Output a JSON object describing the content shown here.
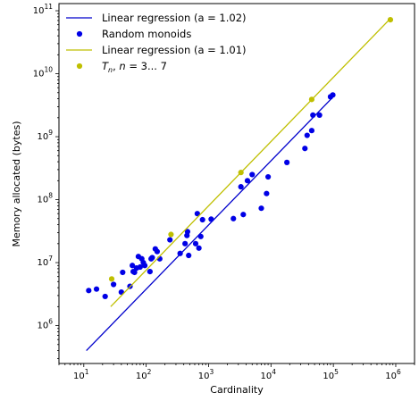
{
  "chart_data": {
    "type": "scatter",
    "title": "",
    "xlabel": "Cardinality",
    "ylabel": "Memory allocated (bytes)",
    "xscale": "log",
    "yscale": "log",
    "xlim": [
      4,
      2000000
    ],
    "ylim": [
      250000,
      130000000000
    ],
    "x_ticks": [
      {
        "value": 10,
        "base": "10",
        "exp": "1"
      },
      {
        "value": 100,
        "base": "10",
        "exp": "2"
      },
      {
        "value": 1000,
        "base": "10",
        "exp": "3"
      },
      {
        "value": 10000,
        "base": "10",
        "exp": "4"
      },
      {
        "value": 100000,
        "base": "10",
        "exp": "5"
      },
      {
        "value": 1000000,
        "base": "10",
        "exp": "6"
      }
    ],
    "y_ticks": [
      {
        "value": 1000000,
        "base": "10",
        "exp": "6"
      },
      {
        "value": 10000000,
        "base": "10",
        "exp": "7"
      },
      {
        "value": 100000000,
        "base": "10",
        "exp": "8"
      },
      {
        "value": 1000000000,
        "base": "10",
        "exp": "9"
      },
      {
        "value": 10000000000,
        "base": "10",
        "exp": "10"
      },
      {
        "value": 100000000000,
        "base": "10",
        "exp": "11"
      }
    ],
    "grid": false,
    "legend_position": "upper-left",
    "series": [
      {
        "name": "Linear regression (a = 1.02)",
        "kind": "line",
        "color": "#0000cc",
        "x": [
          11,
          95000
        ],
        "y": [
          400000,
          4100000000
        ]
      },
      {
        "name": "Random monoids",
        "kind": "scatter",
        "color": "#0000e6",
        "points": [
          [
            12,
            3600000
          ],
          [
            16,
            3800000
          ],
          [
            22,
            2900000
          ],
          [
            30,
            4500000
          ],
          [
            40,
            3400000
          ],
          [
            42,
            7000000
          ],
          [
            55,
            4200000
          ],
          [
            60,
            9000000
          ],
          [
            62,
            7200000
          ],
          [
            65,
            7000000
          ],
          [
            70,
            8200000
          ],
          [
            75,
            12500000
          ],
          [
            80,
            8500000
          ],
          [
            85,
            11500000
          ],
          [
            90,
            10000000
          ],
          [
            95,
            9000000
          ],
          [
            115,
            7200000
          ],
          [
            120,
            11500000
          ],
          [
            125,
            12000000
          ],
          [
            140,
            16500000
          ],
          [
            150,
            15000000
          ],
          [
            165,
            11500000
          ],
          [
            240,
            23000000
          ],
          [
            350,
            14000000
          ],
          [
            420,
            20000000
          ],
          [
            450,
            27000000
          ],
          [
            460,
            31000000
          ],
          [
            480,
            13000000
          ],
          [
            620,
            20000000
          ],
          [
            660,
            60000000
          ],
          [
            700,
            17000000
          ],
          [
            750,
            26000000
          ],
          [
            800,
            48000000
          ],
          [
            1100,
            49000000
          ],
          [
            2500,
            50000000
          ],
          [
            3300,
            160000000
          ],
          [
            3600,
            58000000
          ],
          [
            4200,
            200000000
          ],
          [
            5000,
            250000000
          ],
          [
            7000,
            73000000
          ],
          [
            8500,
            125000000
          ],
          [
            9000,
            230000000
          ],
          [
            18000,
            390000000
          ],
          [
            35000,
            650000000
          ],
          [
            38000,
            1050000000
          ],
          [
            45000,
            1250000000
          ],
          [
            47000,
            2200000000
          ],
          [
            60000,
            2200000000
          ],
          [
            90000,
            4300000000
          ],
          [
            98000,
            4600000000
          ]
        ]
      },
      {
        "name": "Linear regression (a = 1.01)",
        "kind": "line",
        "color": "#bfbf00",
        "x": [
          27,
          820000
        ],
        "y": [
          2000000,
          75000000000
        ]
      },
      {
        "name": "T_n, n = 3... 7",
        "label_parts": {
          "t": "T",
          "sub": "n",
          "rest": ", ",
          "n": "n",
          "tail": " = 3... 7"
        },
        "kind": "scatter",
        "color": "#bfbf00",
        "points": [
          [
            28,
            5500000
          ],
          [
            250,
            28000000
          ],
          [
            3300,
            270000000
          ],
          [
            45000,
            3900000000
          ],
          [
            820000,
            72000000000
          ]
        ]
      }
    ]
  }
}
